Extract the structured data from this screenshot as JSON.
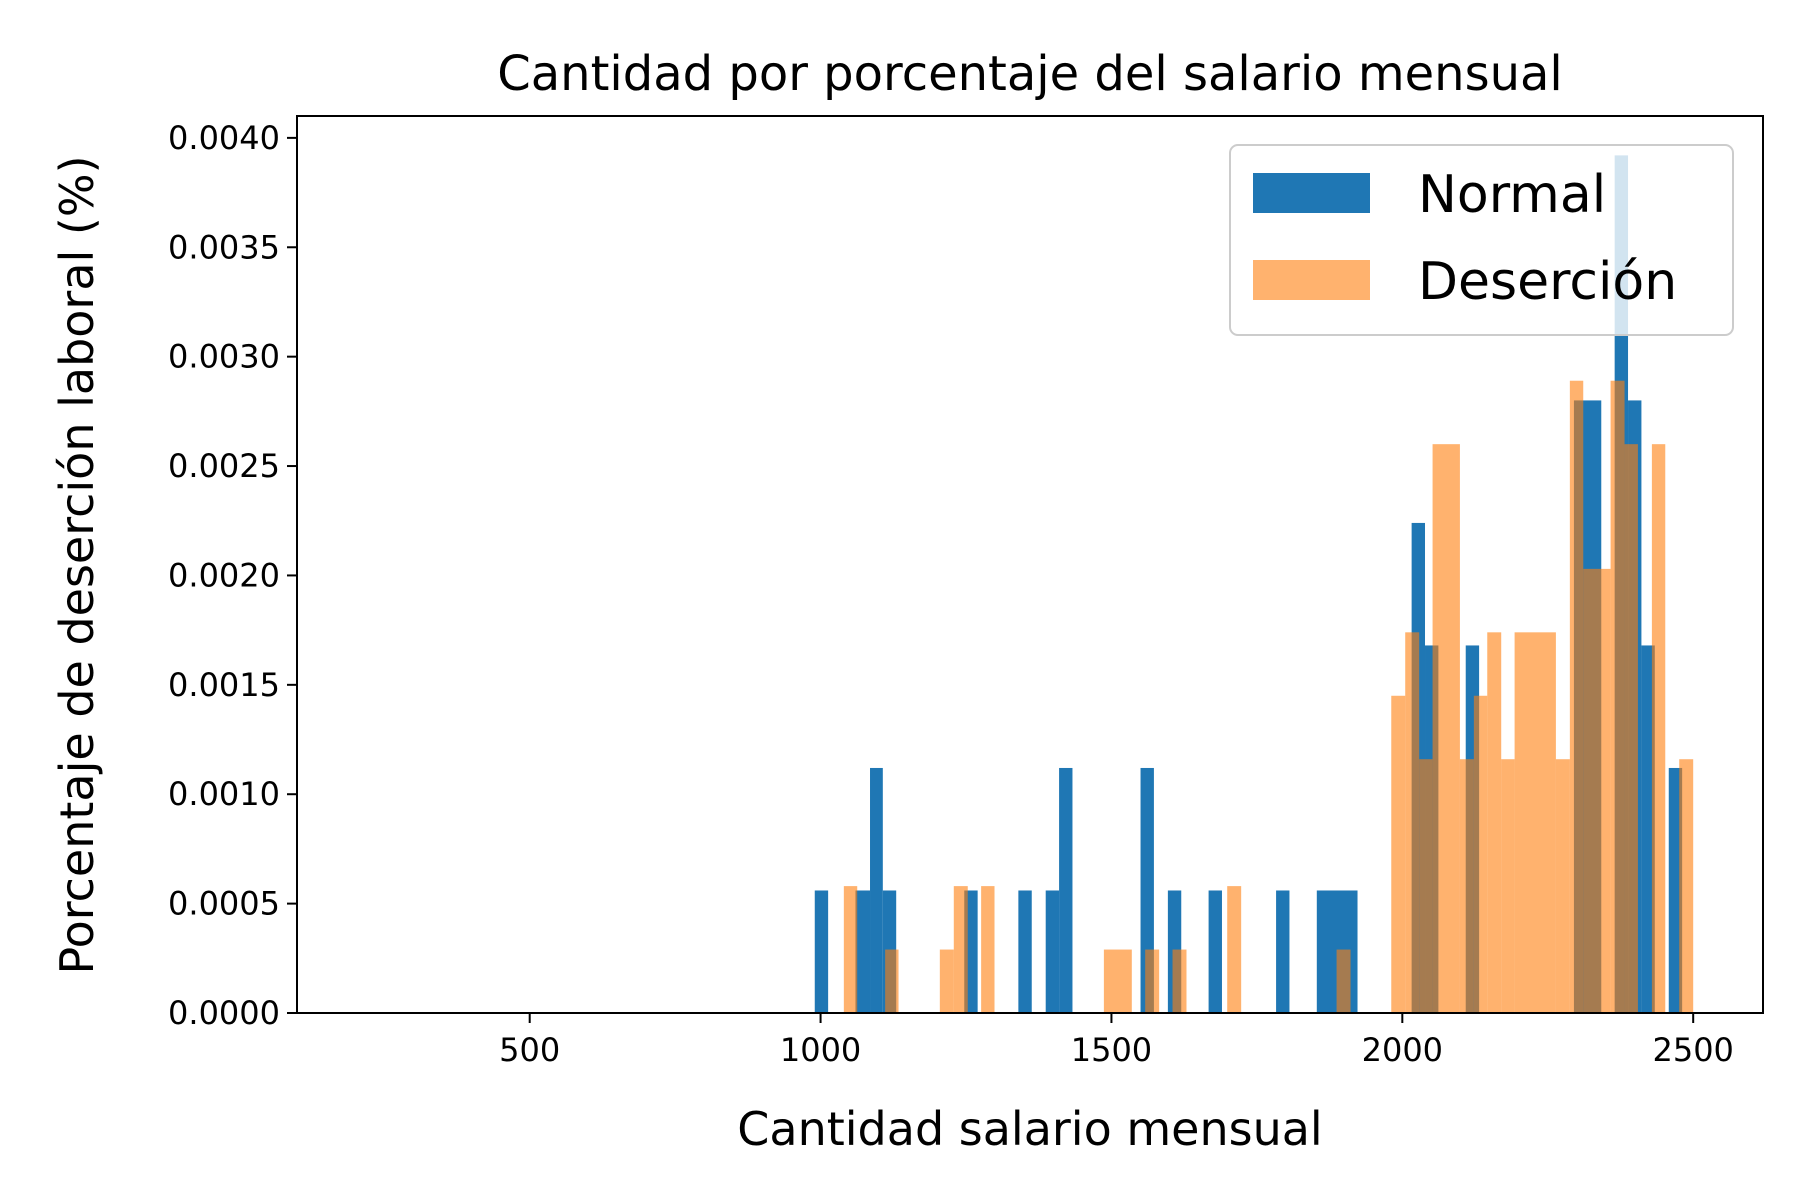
{
  "chart_data": {
    "type": "bar",
    "title": "Cantidad por porcentaje del salario mensual",
    "xlabel": "Cantidad salario mensual",
    "ylabel": "Porcentaje de deserción laboral (%)",
    "xlim": [
      100,
      2620
    ],
    "ylim": [
      0,
      0.0041
    ],
    "x_ticks": [
      500,
      1000,
      1500,
      2000,
      2500
    ],
    "x_tick_labels": [
      "500",
      "1000",
      "1500",
      "2000",
      "2500"
    ],
    "y_ticks": [
      0,
      0.0005,
      0.001,
      0.0015,
      0.002,
      0.0025,
      0.003,
      0.0035,
      0.004
    ],
    "y_tick_labels": [
      "0.0000",
      "0.0005",
      "0.0010",
      "0.0015",
      "0.0020",
      "0.0025",
      "0.0030",
      "0.0035",
      "0.0040"
    ],
    "legend_position": "top-right",
    "grid": false,
    "series": [
      {
        "name": "Normal",
        "color": "#1f77b4",
        "opacity": 1,
        "bars": [
          {
            "x0": 990,
            "x1": 1013,
            "value": 0.00056
          },
          {
            "x0": 1060,
            "x1": 1085,
            "value": 0.00056
          },
          {
            "x0": 1085,
            "x1": 1107,
            "value": 0.00112
          },
          {
            "x0": 1107,
            "x1": 1130,
            "value": 0.00056
          },
          {
            "x0": 1247,
            "x1": 1270,
            "value": 0.00056
          },
          {
            "x0": 1340,
            "x1": 1363,
            "value": 0.00056
          },
          {
            "x0": 1387,
            "x1": 1410,
            "value": 0.00056
          },
          {
            "x0": 1410,
            "x1": 1433,
            "value": 0.00112
          },
          {
            "x0": 1550,
            "x1": 1573,
            "value": 0.00112
          },
          {
            "x0": 1597,
            "x1": 1620,
            "value": 0.00056
          },
          {
            "x0": 1667,
            "x1": 1690,
            "value": 0.00056
          },
          {
            "x0": 1783,
            "x1": 1806,
            "value": 0.00056
          },
          {
            "x0": 1853,
            "x1": 1923,
            "value": 0.00056
          },
          {
            "x0": 2016,
            "x1": 2039,
            "value": 0.00224
          },
          {
            "x0": 2039,
            "x1": 2062,
            "value": 0.00168
          },
          {
            "x0": 2109,
            "x1": 2132,
            "value": 0.00168
          },
          {
            "x0": 2295,
            "x1": 2342,
            "value": 0.0028
          },
          {
            "x0": 2365,
            "x1": 2388,
            "value": 0.00392
          },
          {
            "x0": 2388,
            "x1": 2411,
            "value": 0.0028
          },
          {
            "x0": 2411,
            "x1": 2434,
            "value": 0.00168
          },
          {
            "x0": 2458,
            "x1": 2481,
            "value": 0.00112
          }
        ]
      },
      {
        "name": "Deserción",
        "color": "#ff7f0e",
        "opacity": 0.6,
        "bars": [
          {
            "x0": 1040,
            "x1": 1063,
            "value": 0.00058
          },
          {
            "x0": 1111,
            "x1": 1134,
            "value": 0.00029
          },
          {
            "x0": 1205,
            "x1": 1229,
            "value": 0.00029
          },
          {
            "x0": 1229,
            "x1": 1253,
            "value": 0.00058
          },
          {
            "x0": 1276,
            "x1": 1299,
            "value": 0.00058
          },
          {
            "x0": 1487,
            "x1": 1535,
            "value": 0.00029
          },
          {
            "x0": 1558,
            "x1": 1582,
            "value": 0.00029
          },
          {
            "x0": 1605,
            "x1": 1629,
            "value": 0.00029
          },
          {
            "x0": 1699,
            "x1": 1723,
            "value": 0.00058
          },
          {
            "x0": 1887,
            "x1": 1911,
            "value": 0.00029
          },
          {
            "x0": 1981,
            "x1": 2005,
            "value": 0.00145
          },
          {
            "x0": 2005,
            "x1": 2029,
            "value": 0.00174
          },
          {
            "x0": 2029,
            "x1": 2052,
            "value": 0.00116
          },
          {
            "x0": 2052,
            "x1": 2099,
            "value": 0.0026
          },
          {
            "x0": 2099,
            "x1": 2123,
            "value": 0.00116
          },
          {
            "x0": 2123,
            "x1": 2146,
            "value": 0.00145
          },
          {
            "x0": 2146,
            "x1": 2170,
            "value": 0.00174
          },
          {
            "x0": 2170,
            "x1": 2193,
            "value": 0.00116
          },
          {
            "x0": 2193,
            "x1": 2264,
            "value": 0.00174
          },
          {
            "x0": 2264,
            "x1": 2288,
            "value": 0.00116
          },
          {
            "x0": 2288,
            "x1": 2311,
            "value": 0.00289
          },
          {
            "x0": 2311,
            "x1": 2358,
            "value": 0.00203
          },
          {
            "x0": 2358,
            "x1": 2382,
            "value": 0.00289
          },
          {
            "x0": 2382,
            "x1": 2405,
            "value": 0.0026
          },
          {
            "x0": 2429,
            "x1": 2452,
            "value": 0.0026
          },
          {
            "x0": 2476,
            "x1": 2500,
            "value": 0.00116
          }
        ]
      }
    ]
  }
}
